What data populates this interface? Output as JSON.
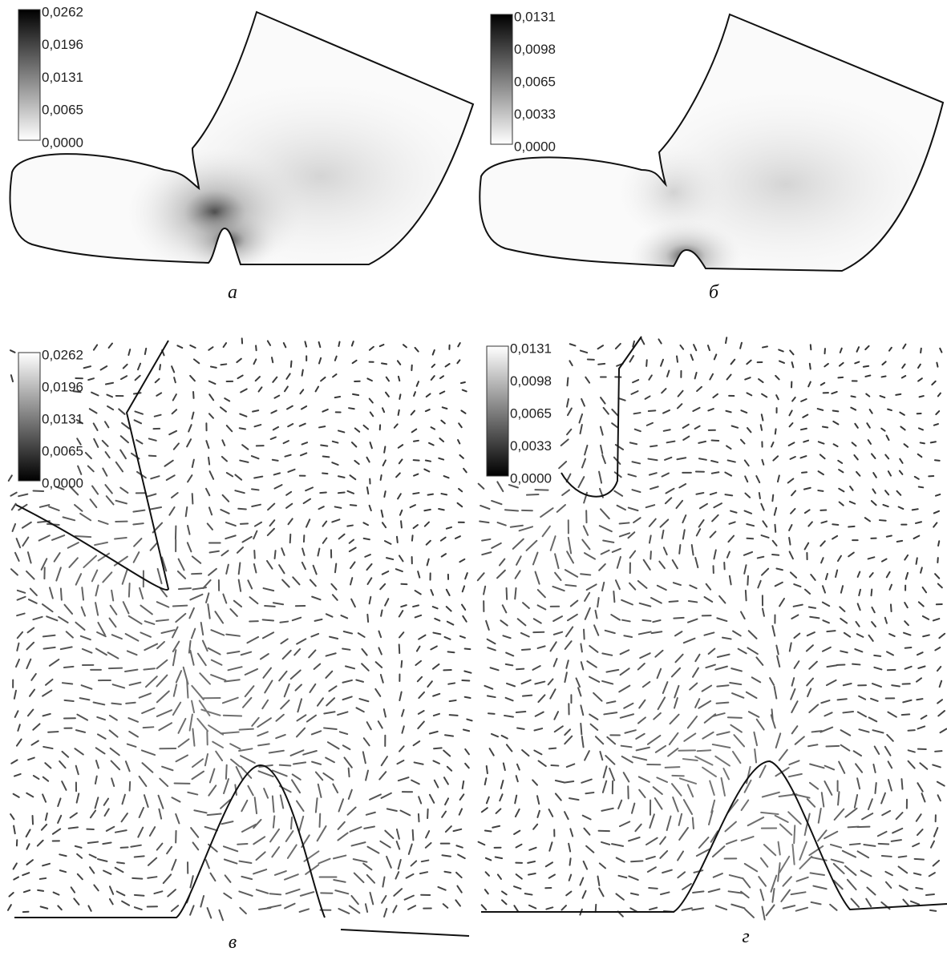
{
  "panels": [
    {
      "caption": "а",
      "colorbar": [
        "0,0262",
        "0,0196",
        "0,0131",
        "0,0065",
        "0,0000"
      ]
    },
    {
      "caption": "б",
      "colorbar": [
        "0,0131",
        "0,0098",
        "0,0065",
        "0,0033",
        "0,0000"
      ]
    },
    {
      "caption": "в",
      "colorbar": [
        "0,0262",
        "0,0196",
        "0,0131",
        "0,0065",
        "0,0000"
      ]
    },
    {
      "caption": "г",
      "colorbar": [
        "0,0131",
        "0,0098",
        "0,0065",
        "0,0033",
        "0,0000"
      ]
    }
  ]
}
